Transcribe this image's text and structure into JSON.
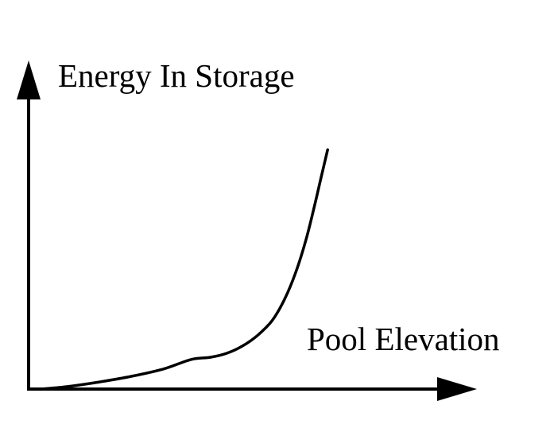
{
  "colors": {
    "ink": "#000000",
    "background": "#ffffff"
  },
  "chart_data": {
    "type": "line",
    "title": "",
    "xlabel": "Pool Elevation",
    "ylabel": "Energy In Storage",
    "x_ticks": [],
    "y_ticks": [],
    "grid": false,
    "legend": false,
    "axes": {
      "x_arrow": true,
      "y_arrow": true,
      "style": "unlabeled qualitative sketch axes"
    },
    "series": [
      {
        "name": "energy-in-storage-vs-pool-elevation",
        "points_normalized": [
          [
            0.025,
            0.002
          ],
          [
            0.087,
            0.01
          ],
          [
            0.158,
            0.024
          ],
          [
            0.229,
            0.041
          ],
          [
            0.3,
            0.063
          ],
          [
            0.362,
            0.092
          ],
          [
            0.406,
            0.099
          ],
          [
            0.442,
            0.111
          ],
          [
            0.477,
            0.133
          ],
          [
            0.512,
            0.167
          ],
          [
            0.543,
            0.21
          ],
          [
            0.571,
            0.275
          ],
          [
            0.596,
            0.357
          ],
          [
            0.619,
            0.457
          ],
          [
            0.638,
            0.56
          ],
          [
            0.654,
            0.654
          ],
          [
            0.667,
            0.729
          ]
        ]
      }
    ],
    "description": "Monotonically increasing curve: energy in storage rises slowly at low pool elevation, flattens briefly at a mid-range shoulder, then climbs steeply at high pool elevation."
  }
}
